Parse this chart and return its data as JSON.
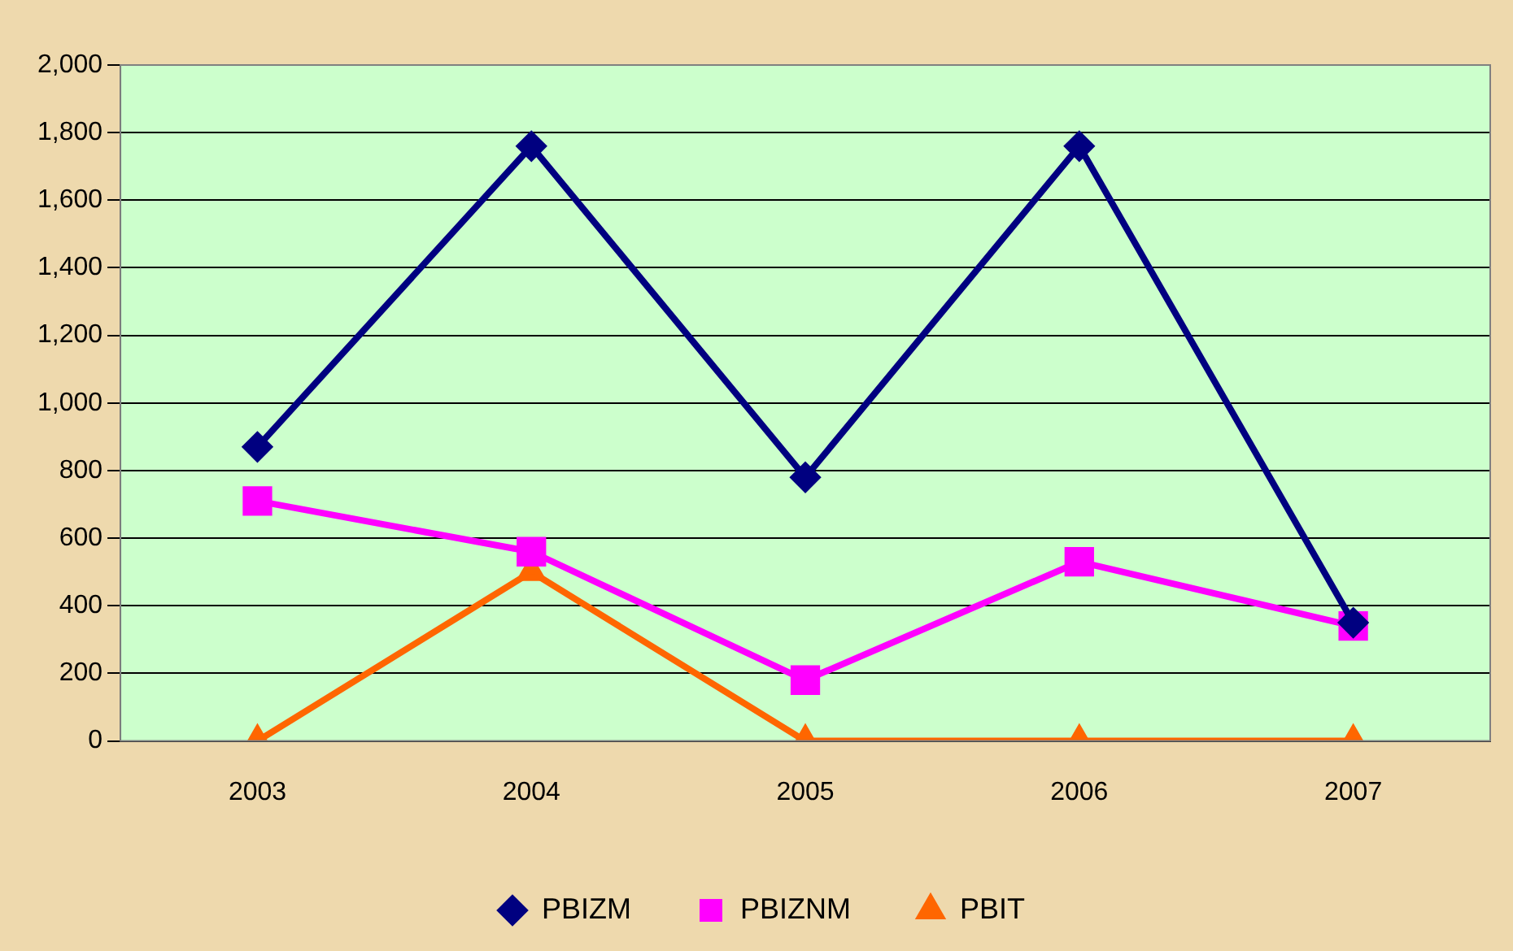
{
  "chart_data": {
    "type": "line",
    "categories": [
      "2003",
      "2004",
      "2005",
      "2006",
      "2007"
    ],
    "series": [
      {
        "name": "PBIZM",
        "color": "#000080",
        "marker": "diamond",
        "values": [
          870,
          1760,
          780,
          1760,
          350
        ]
      },
      {
        "name": "PBIZNM",
        "color": "#ff00ff",
        "marker": "square",
        "values": [
          710,
          560,
          180,
          530,
          340
        ]
      },
      {
        "name": "PBIT",
        "color": "#ff6600",
        "marker": "triangle",
        "values": [
          0,
          500,
          0,
          0,
          0
        ]
      }
    ],
    "ylim": [
      0,
      2000
    ],
    "yticks": [
      0,
      200,
      400,
      600,
      800,
      {
        "value": 1000,
        "label": "1,000"
      },
      {
        "value": 1200,
        "label": "1,200"
      },
      {
        "value": 1400,
        "label": "1,400"
      },
      {
        "value": 1600,
        "label": "1,600"
      },
      {
        "value": 1800,
        "label": "1,800"
      },
      {
        "value": 2000,
        "label": "2,000"
      }
    ],
    "grid": "y",
    "legend": "bottom",
    "line_style": "solid"
  }
}
